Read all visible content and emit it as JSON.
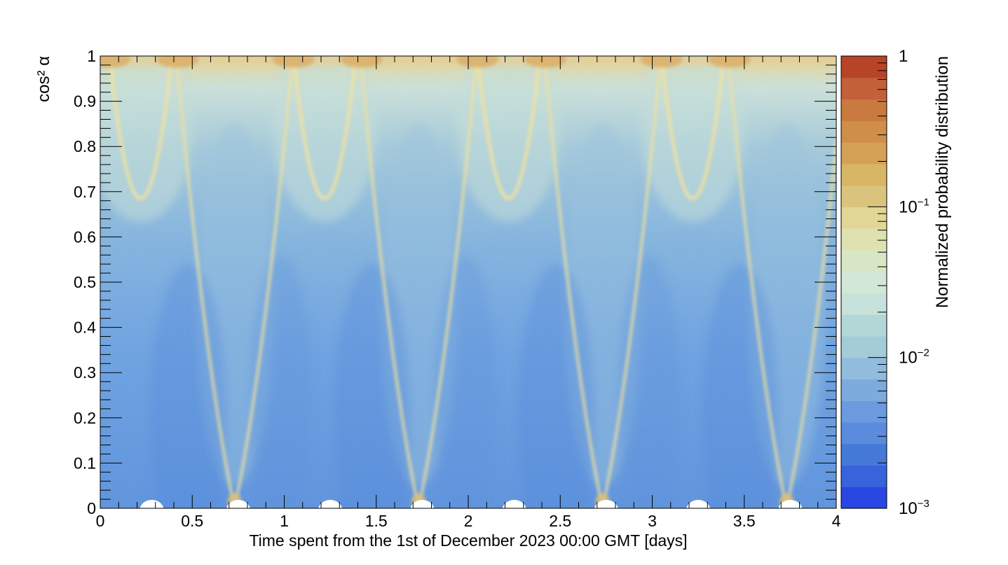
{
  "chart_data": {
    "type": "heatmap",
    "title": "",
    "xlabel": "Time spent from the 1st of December 2023 00:00 GMT [days]",
    "ylabel": "cos² α",
    "zlabel": "Normalized probability distribution",
    "xlim": [
      0,
      4
    ],
    "ylim": [
      0,
      1
    ],
    "zlim": [
      0.001,
      1
    ],
    "z_scale": "log",
    "x_ticks": [
      "0",
      "0.5",
      "1",
      "1.5",
      "2",
      "2.5",
      "3",
      "3.5",
      "4"
    ],
    "y_ticks": [
      "0",
      "0.1",
      "0.2",
      "0.3",
      "0.4",
      "0.5",
      "0.6",
      "0.7",
      "0.8",
      "0.9",
      "1"
    ],
    "z_ticks": [
      {
        "value": 0.001,
        "base": "10",
        "exp": "−3"
      },
      {
        "value": 0.01,
        "base": "10",
        "exp": "−2"
      },
      {
        "value": 0.1,
        "base": "10",
        "exp": "−1"
      },
      {
        "value": 1,
        "base": "1",
        "exp": ""
      }
    ],
    "colorbar_colors": [
      "#2a46e3",
      "#3763dd",
      "#4579d8",
      "#5a8bdc",
      "#6b9ade",
      "#7eabdd",
      "#92bcdd",
      "#a4cbd8",
      "#b3d7d6",
      "#c7e2da",
      "#d3e7d6",
      "#d9e6c6",
      "#dfe2b0",
      "#e0d696",
      "#dac47d",
      "#d9b566",
      "#d4a157",
      "#cf8e49",
      "#c97b3f",
      "#c2603a",
      "#b84427"
    ],
    "peak_minima_x": [
      0.22,
      1.22,
      2.22,
      3.22
    ],
    "peak_minima_y": 0.685,
    "dip_minima_x": [
      0.73,
      1.73,
      2.73,
      3.73
    ],
    "dip_minima_y": 0.0,
    "empty_regions_x": [
      0.28,
      1.25,
      2.25,
      3.25,
      0.75,
      1.75,
      2.75,
      3.75
    ],
    "empty_regions_y_max": 0.02
  }
}
